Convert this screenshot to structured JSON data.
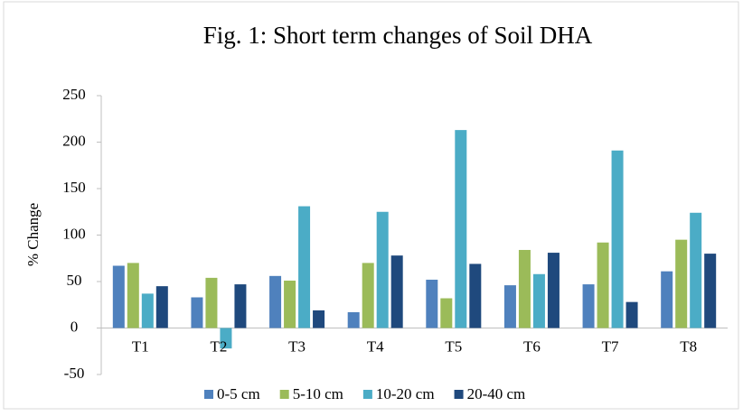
{
  "chart_data": {
    "type": "bar",
    "title": "Fig. 1: Short term changes of Soil DHA",
    "y_label": "% Change",
    "categories": [
      "T1",
      "T2",
      "T3",
      "T4",
      "T5",
      "T6",
      "T7",
      "T8"
    ],
    "series": [
      {
        "name": "0-5 cm",
        "color": "#4f81bd",
        "values": [
          67,
          33,
          56,
          17,
          52,
          46,
          47,
          61
        ]
      },
      {
        "name": "5-10 cm",
        "color": "#9bbb59",
        "values": [
          70,
          54,
          51,
          70,
          32,
          84,
          92,
          95
        ]
      },
      {
        "name": "10-20 cm",
        "color": "#4bacc6",
        "values": [
          37,
          -22,
          131,
          125,
          213,
          58,
          191,
          124
        ]
      },
      {
        "name": "20-40 cm",
        "color": "#1f497d",
        "values": [
          45,
          47,
          19,
          78,
          69,
          81,
          28,
          80
        ]
      }
    ],
    "ylim": [
      -50,
      250
    ],
    "yticks": [
      -50,
      0,
      50,
      100,
      150,
      200,
      250
    ],
    "grid": false,
    "legend": "bottom"
  }
}
